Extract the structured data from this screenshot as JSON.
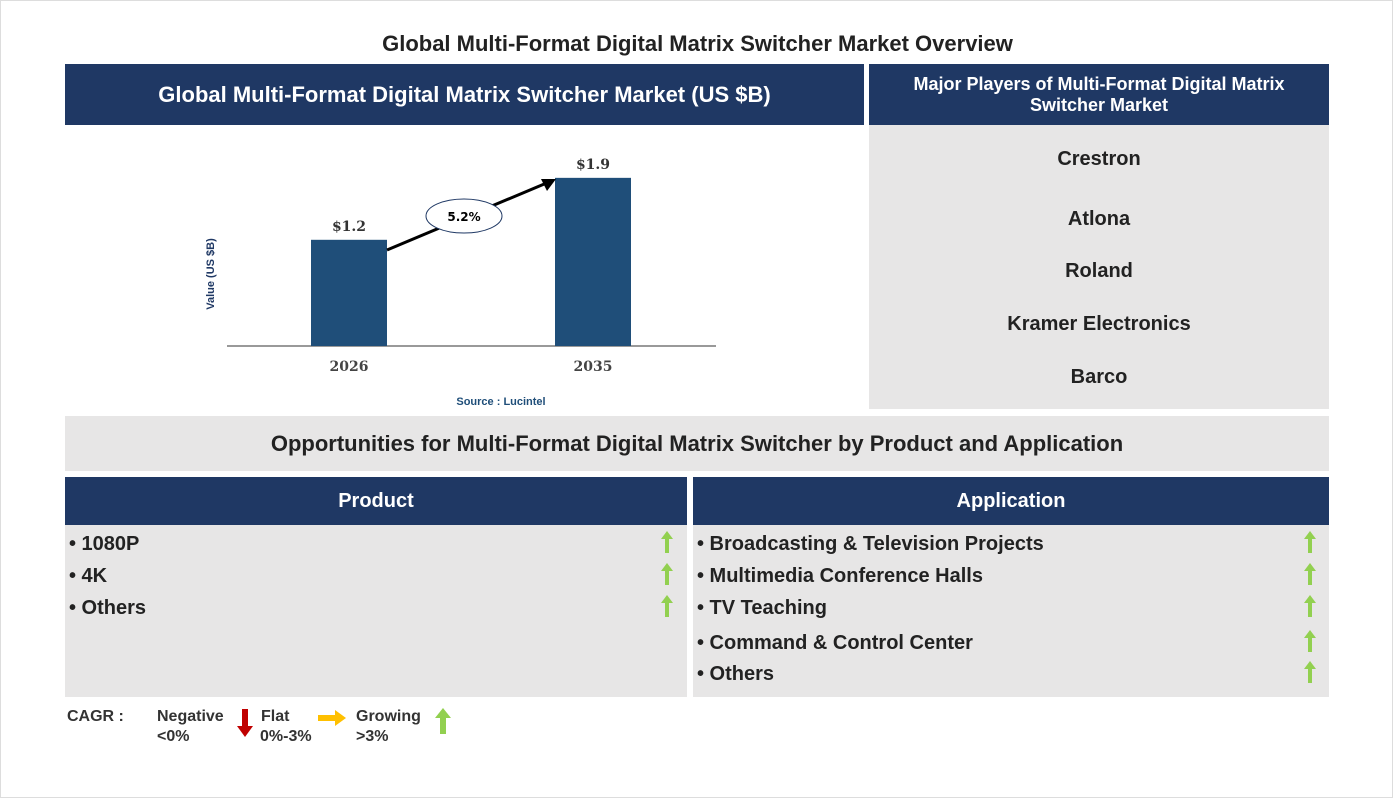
{
  "title": "Global Multi-Format Digital Matrix Switcher Market Overview",
  "chart_header": "Global Multi-Format Digital Matrix Switcher Market (US $B)",
  "players_header": "Major Players of Multi-Format Digital Matrix Switcher Market",
  "players": [
    "Crestron",
    "Atlona",
    "Roland",
    "Kramer Electronics",
    "Barco"
  ],
  "opportunities_header": "Opportunities for Multi-Format Digital Matrix Switcher by Product and Application",
  "product": {
    "header": "Product",
    "items": [
      "• 1080P",
      "• 4K",
      "• Others"
    ]
  },
  "application": {
    "header": "Application",
    "items": [
      "• Broadcasting & Television Projects",
      "• Multimedia Conference Halls",
      "• TV Teaching",
      "• Command & Control Center",
      "• Others"
    ]
  },
  "legend": {
    "cagr": "CAGR :",
    "negative": "Negative",
    "negative_range": "<0%",
    "flat": "Flat",
    "flat_range": "0%-3%",
    "growing": "Growing",
    "growing_range": ">3%"
  },
  "colors": {
    "navy": "#1f3864",
    "bar": "#1f4e79",
    "grey": "#e7e6e6",
    "up": "#92d050",
    "down": "#c00000",
    "flat": "#ffc000"
  },
  "chart_data": {
    "type": "bar",
    "categories": [
      "2026",
      "2035"
    ],
    "values": [
      1.2,
      1.9
    ],
    "data_labels": [
      "$1.2",
      "$1.9"
    ],
    "ylabel": "Value (US $B)",
    "ylim": [
      0,
      2.0
    ],
    "annotation": "5.2%",
    "source": "Source : Lucintel"
  }
}
